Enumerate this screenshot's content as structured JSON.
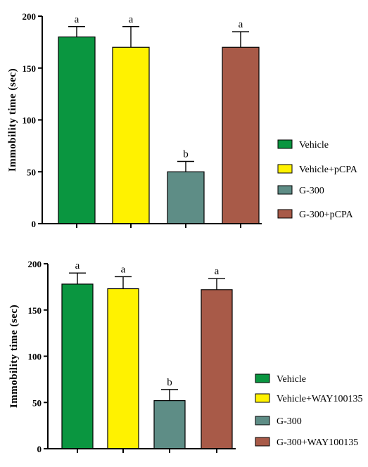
{
  "chart_data": [
    {
      "type": "bar",
      "ylabel": "Immobility time (sec)",
      "ylim": [
        0,
        200
      ],
      "yticks": [
        0,
        50,
        100,
        150,
        200
      ],
      "grid": false,
      "legend_position": "right",
      "categories": [
        "Vehicle",
        "Vehicle+pCPA",
        "G-300",
        "G-300+pCPA"
      ],
      "values": [
        180,
        170,
        50,
        170
      ],
      "errors": [
        10,
        20,
        10,
        15
      ],
      "significance": [
        "a",
        "a",
        "b",
        "a"
      ],
      "colors": [
        "#0a9640",
        "#fff200",
        "#5e8d86",
        "#a85a48"
      ]
    },
    {
      "type": "bar",
      "ylabel": "Immobility time (sec)",
      "ylim": [
        0,
        200
      ],
      "yticks": [
        0,
        50,
        100,
        150,
        200
      ],
      "grid": false,
      "legend_position": "right",
      "categories": [
        "Vehicle",
        "Vehicle+WAY100135",
        "G-300",
        "G-300+WAY100135"
      ],
      "values": [
        178,
        173,
        52,
        172
      ],
      "errors": [
        12,
        13,
        12,
        12
      ],
      "significance": [
        "a",
        "a",
        "b",
        "a"
      ],
      "colors": [
        "#0a9640",
        "#fff200",
        "#5e8d86",
        "#a85a48"
      ]
    }
  ]
}
